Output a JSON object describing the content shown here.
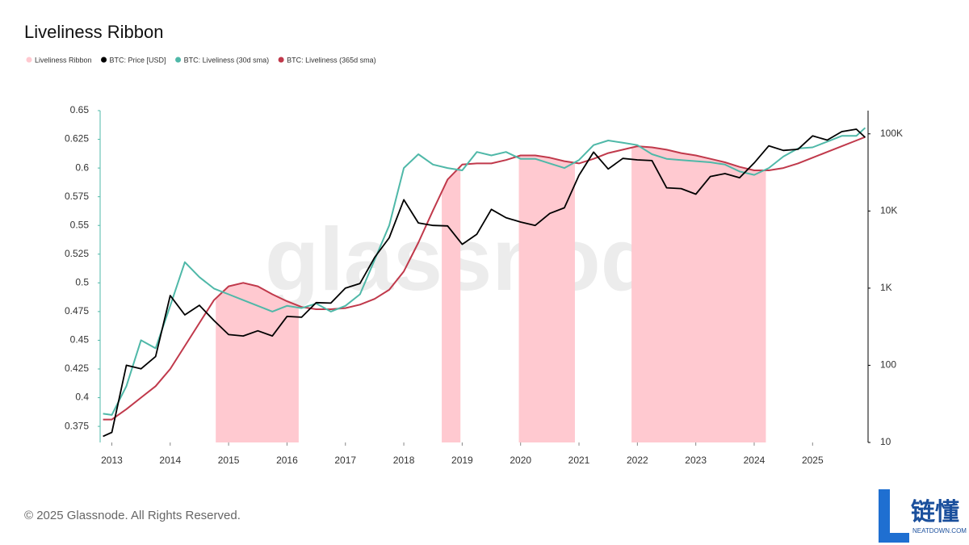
{
  "chart_data": {
    "type": "line",
    "title": "Liveliness Ribbon",
    "watermark": "glassnode",
    "footer": "© 2025 Glassnode. All Rights Reserved.",
    "logo": {
      "mark": "链懂",
      "site": "NEATDOWN.COM"
    },
    "ribbon": {
      "name": "Liveliness Ribbon",
      "color": "#ffc9d0",
      "spans": [
        [
          2014.78,
          2016.2
        ],
        [
          2018.65,
          2018.97
        ],
        [
          2019.97,
          2020.93
        ],
        [
          2021.9,
          2024.2
        ]
      ]
    },
    "x": [
      2012.85,
      2013.0,
      2013.25,
      2013.5,
      2013.75,
      2014.0,
      2014.25,
      2014.5,
      2014.75,
      2015.0,
      2015.25,
      2015.5,
      2015.75,
      2016.0,
      2016.25,
      2016.5,
      2016.75,
      2017.0,
      2017.25,
      2017.5,
      2017.75,
      2018.0,
      2018.25,
      2018.5,
      2018.75,
      2019.0,
      2019.25,
      2019.5,
      2019.75,
      2020.0,
      2020.25,
      2020.5,
      2020.75,
      2021.0,
      2021.25,
      2021.5,
      2021.75,
      2022.0,
      2022.25,
      2022.5,
      2022.75,
      2023.0,
      2023.25,
      2023.5,
      2023.75,
      2024.0,
      2024.25,
      2024.5,
      2024.75,
      2025.0,
      2025.25,
      2025.5,
      2025.75,
      2025.9
    ],
    "series": [
      {
        "name": "BTC: Price [USD]",
        "color": "#000000",
        "axis": "y2",
        "values": [
          12,
          13.5,
          100,
          90,
          130,
          800,
          450,
          600,
          380,
          250,
          240,
          280,
          240,
          430,
          420,
          650,
          640,
          1000,
          1150,
          2500,
          4500,
          14000,
          7000,
          6500,
          6400,
          3700,
          5000,
          10500,
          8200,
          7200,
          6500,
          9300,
          11000,
          29000,
          58000,
          35000,
          48000,
          46000,
          45000,
          20000,
          19500,
          16500,
          28000,
          30500,
          27000,
          42000,
          70000,
          61000,
          63000,
          94000,
          83000,
          107000,
          115000,
          90000
        ]
      },
      {
        "name": "BTC: Liveliness (30d sma)",
        "color": "#4fb8a8",
        "values": [
          0.386,
          0.385,
          0.41,
          0.45,
          0.443,
          0.48,
          0.518,
          0.505,
          0.495,
          0.49,
          0.485,
          0.48,
          0.475,
          0.48,
          0.478,
          0.482,
          0.475,
          0.48,
          0.49,
          0.52,
          0.55,
          0.6,
          0.612,
          0.603,
          0.6,
          0.598,
          0.614,
          0.611,
          0.614,
          0.608,
          0.608,
          0.604,
          0.6,
          0.607,
          0.62,
          0.624,
          0.622,
          0.62,
          0.612,
          0.608,
          0.607,
          0.606,
          0.605,
          0.603,
          0.597,
          0.594,
          0.6,
          0.61,
          0.617,
          0.618,
          0.623,
          0.628,
          0.628,
          0.635
        ]
      },
      {
        "name": "BTC: Liveliness (365d sma)",
        "color": "#c0394b",
        "values": [
          0.381,
          0.381,
          0.39,
          0.4,
          0.41,
          0.425,
          0.445,
          0.465,
          0.485,
          0.497,
          0.5,
          0.497,
          0.49,
          0.484,
          0.479,
          0.477,
          0.477,
          0.478,
          0.481,
          0.486,
          0.494,
          0.51,
          0.535,
          0.563,
          0.59,
          0.603,
          0.604,
          0.604,
          0.607,
          0.611,
          0.611,
          0.609,
          0.606,
          0.604,
          0.608,
          0.613,
          0.616,
          0.619,
          0.618,
          0.616,
          0.613,
          0.611,
          0.608,
          0.605,
          0.601,
          0.598,
          0.598,
          0.6,
          0.604,
          0.609,
          0.614,
          0.619,
          0.624,
          0.627
        ]
      }
    ],
    "xlim": [
      2012.8,
      2025.95
    ],
    "xticks": [
      2013,
      2014,
      2015,
      2016,
      2017,
      2018,
      2019,
      2020,
      2021,
      2022,
      2023,
      2024,
      2025
    ],
    "ylim": [
      0.361,
      0.65
    ],
    "yticks": [
      0.375,
      0.4,
      0.425,
      0.45,
      0.475,
      0.5,
      0.525,
      0.55,
      0.575,
      0.6,
      0.625,
      0.65
    ],
    "y2lim": [
      10,
      200000
    ],
    "y2log": true,
    "y2ticks": [
      10,
      100,
      {
        "value": 1000,
        "label": "1K"
      },
      {
        "value": 10000,
        "label": "10K"
      },
      {
        "value": 100000,
        "label": "100K"
      }
    ]
  }
}
